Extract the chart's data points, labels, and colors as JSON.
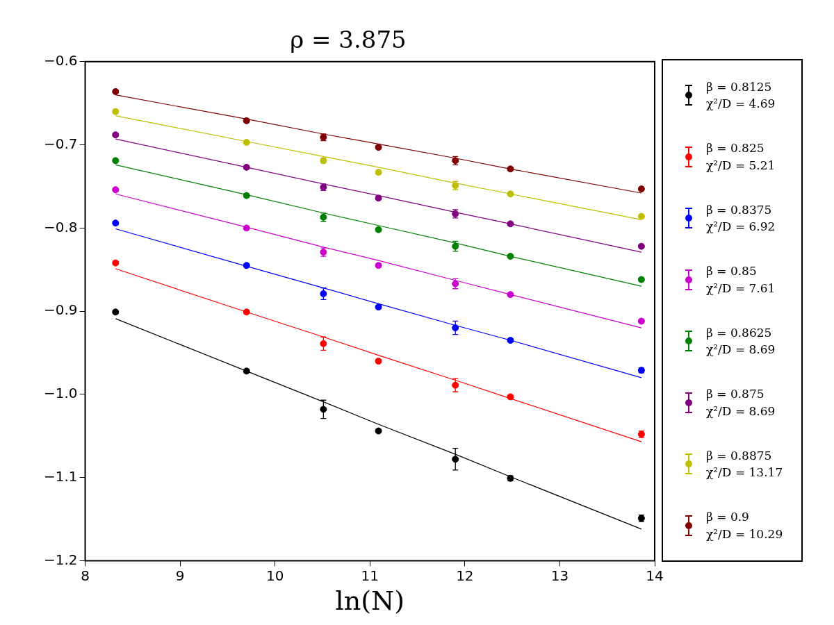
{
  "chart_data": {
    "type": "scatter",
    "title": "ρ = 3.875",
    "xlabel": "ln(N)",
    "xlim": [
      8,
      14
    ],
    "xticks": [
      8,
      9,
      10,
      11,
      12,
      13,
      14
    ],
    "ylim": [
      -1.2,
      -0.6
    ],
    "yticks": [
      {
        "value": -1.2,
        "label": "−1.2"
      },
      {
        "value": -1.1,
        "label": "−1.1"
      },
      {
        "value": -1.0,
        "label": "−1.0"
      },
      {
        "value": -0.9,
        "label": "−0.9"
      },
      {
        "value": -0.8,
        "label": "−0.8"
      },
      {
        "value": -0.7,
        "label": "−0.7"
      },
      {
        "value": -0.6,
        "label": "−0.6"
      }
    ],
    "grid": false,
    "legend": "right",
    "marker": "circle",
    "x": [
      8.32,
      9.7,
      10.51,
      11.09,
      11.9,
      12.48,
      13.86
    ],
    "series": [
      {
        "name": "β = 0.8125\nχ²/D = 4.69",
        "color": "#000000",
        "values": [
          -0.901,
          -0.972,
          -1.018,
          -1.044,
          -1.078,
          -1.101,
          -1.149
        ],
        "errors": [
          0.002,
          0.002,
          0.011,
          0.002,
          0.013,
          0.003,
          0.004
        ]
      },
      {
        "name": "β = 0.825\nχ²/D = 5.21",
        "color": "#ff0000",
        "values": [
          -0.842,
          -0.901,
          -0.939,
          -0.96,
          -0.989,
          -1.003,
          -1.048
        ],
        "errors": [
          0.002,
          0.002,
          0.008,
          0.002,
          0.008,
          0.002,
          0.004
        ]
      },
      {
        "name": "β = 0.8375\nχ²/D = 6.92",
        "color": "#0000ff",
        "values": [
          -0.794,
          -0.845,
          -0.879,
          -0.895,
          -0.92,
          -0.935,
          -0.971
        ],
        "errors": [
          0.002,
          0.002,
          0.007,
          0.002,
          0.008,
          0.002,
          0.003
        ]
      },
      {
        "name": "β = 0.85\nχ²/D = 7.61",
        "color": "#cc00cc",
        "values": [
          -0.754,
          -0.8,
          -0.829,
          -0.845,
          -0.867,
          -0.88,
          -0.912
        ],
        "errors": [
          0.002,
          0.002,
          0.005,
          0.002,
          0.006,
          0.002,
          0.002
        ]
      },
      {
        "name": "β = 0.8625\nχ²/D = 8.69",
        "color": "#008000",
        "values": [
          -0.719,
          -0.761,
          -0.787,
          -0.802,
          -0.822,
          -0.834,
          -0.862
        ],
        "errors": [
          0.002,
          0.002,
          0.005,
          0.002,
          0.006,
          0.002,
          0.002
        ]
      },
      {
        "name": "β = 0.875\nχ²/D = 8.69",
        "color": "#800080",
        "values": [
          -0.688,
          -0.727,
          -0.751,
          -0.764,
          -0.783,
          -0.795,
          -0.822
        ],
        "errors": [
          0.002,
          0.002,
          0.004,
          0.002,
          0.005,
          0.002,
          0.002
        ]
      },
      {
        "name": "β = 0.8875\nχ²/D = 13.17",
        "color": "#bfbf00",
        "values": [
          -0.66,
          -0.697,
          -0.719,
          -0.733,
          -0.749,
          -0.759,
          -0.786
        ],
        "errors": [
          0.002,
          0.002,
          0.003,
          0.002,
          0.005,
          0.002,
          0.002
        ]
      },
      {
        "name": "β = 0.9\nχ²/D = 10.29",
        "color": "#800000",
        "values": [
          -0.636,
          -0.671,
          -0.691,
          -0.703,
          -0.719,
          -0.729,
          -0.753
        ],
        "errors": [
          0.002,
          0.002,
          0.004,
          0.002,
          0.005,
          0.002,
          0.002
        ]
      },
      {
        "type": "line",
        "marker": "none",
        "color": "#000000",
        "values": [
          -0.909,
          -0.972,
          -1.009,
          -1.036,
          -1.072,
          -1.099,
          -1.162
        ]
      },
      {
        "type": "line",
        "marker": "none",
        "color": "#ff0000",
        "values": [
          -0.849,
          -0.901,
          -0.931,
          -0.953,
          -0.983,
          -1.005,
          -1.057
        ]
      },
      {
        "type": "line",
        "marker": "none",
        "color": "#0000ff",
        "values": [
          -0.801,
          -0.846,
          -0.872,
          -0.891,
          -0.917,
          -0.935,
          -0.98
        ]
      },
      {
        "type": "line",
        "marker": "none",
        "color": "#cc00cc",
        "values": [
          -0.759,
          -0.799,
          -0.823,
          -0.839,
          -0.863,
          -0.88,
          -0.92
        ]
      },
      {
        "type": "line",
        "marker": "none",
        "color": "#008000",
        "values": [
          -0.724,
          -0.76,
          -0.782,
          -0.797,
          -0.818,
          -0.834,
          -0.87
        ]
      },
      {
        "type": "line",
        "marker": "none",
        "color": "#800080",
        "values": [
          -0.693,
          -0.727,
          -0.747,
          -0.761,
          -0.781,
          -0.795,
          -0.829
        ]
      },
      {
        "type": "line",
        "marker": "none",
        "color": "#bfbf00",
        "values": [
          -0.665,
          -0.696,
          -0.714,
          -0.727,
          -0.746,
          -0.759,
          -0.79
        ]
      },
      {
        "type": "line",
        "marker": "none",
        "color": "#800000",
        "values": [
          -0.64,
          -0.669,
          -0.687,
          -0.699,
          -0.716,
          -0.729,
          -0.758
        ]
      }
    ]
  }
}
